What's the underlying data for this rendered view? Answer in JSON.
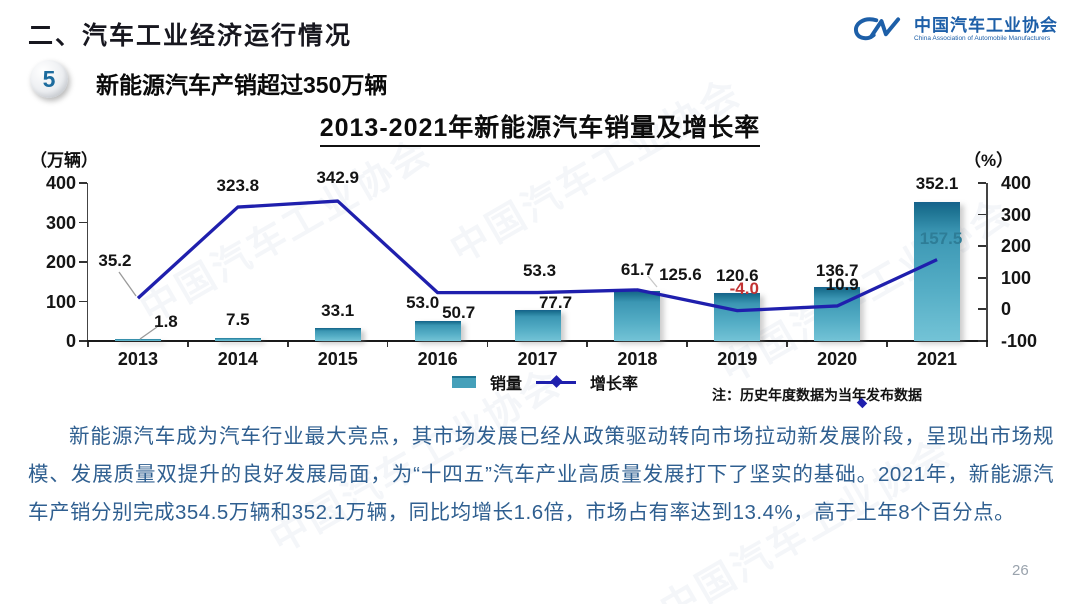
{
  "header": {
    "title": "二、汽车工业经济运行情况"
  },
  "logo": {
    "icon": "caam-swoosh-cm",
    "name_cn": "中国汽车工业协会",
    "name_en": "China Association of Automobile Manufacturers"
  },
  "watermark": {
    "text": "中国汽车工业协会"
  },
  "section": {
    "number": "5",
    "title": "新能源汽车产销超过350万辆"
  },
  "chart_data": {
    "type": "bar+line",
    "title": "2013-2021年新能源汽车销量及增长率",
    "categories": [
      "2013",
      "2014",
      "2015",
      "2016",
      "2017",
      "2018",
      "2019",
      "2020",
      "2021"
    ],
    "series": [
      {
        "name": "销量",
        "type": "bar",
        "axis": "left",
        "unit": "万辆",
        "values": [
          1.8,
          7.5,
          33.1,
          50.7,
          77.7,
          125.6,
          120.6,
          136.7,
          352.1
        ]
      },
      {
        "name": "增长率",
        "type": "line",
        "axis": "right",
        "unit": "%",
        "values": [
          35.2,
          323.8,
          342.9,
          53.0,
          53.3,
          61.7,
          -4.0,
          10.9,
          157.5
        ]
      }
    ],
    "left_axis": {
      "label": "（万辆）",
      "min": 0,
      "max": 400,
      "ticks": [
        0,
        100,
        200,
        300,
        400
      ]
    },
    "right_axis": {
      "label": "（%）",
      "min": -100,
      "max": 400,
      "ticks": [
        -100,
        0,
        100,
        200,
        300,
        400
      ]
    },
    "legend": [
      "销量",
      "增长率"
    ],
    "legend_position": "bottom",
    "grid": false,
    "note": "注：历史年度数据为当年发布数据",
    "colors": {
      "bar": "#3d9fba",
      "line": "#1f1fad",
      "label": "#141414",
      "negative_label": "#c23333",
      "last_growth_label": "#2e7d97"
    }
  },
  "body": {
    "paragraph": "新能源汽车成为汽车行业最大亮点，其市场发展已经从政策驱动转向市场拉动新发展阶段，呈现出市场规模、发展质量双提升的良好发展局面，为“十四五”汽车产业高质量发展打下了坚实的基础。2021年，新能源汽车产销分别完成354.5万辆和352.1万辆，同比均增长1.6倍，市场占有率达到13.4%，高于上年8个百分点。"
  },
  "footer": {
    "page_number": "26"
  }
}
